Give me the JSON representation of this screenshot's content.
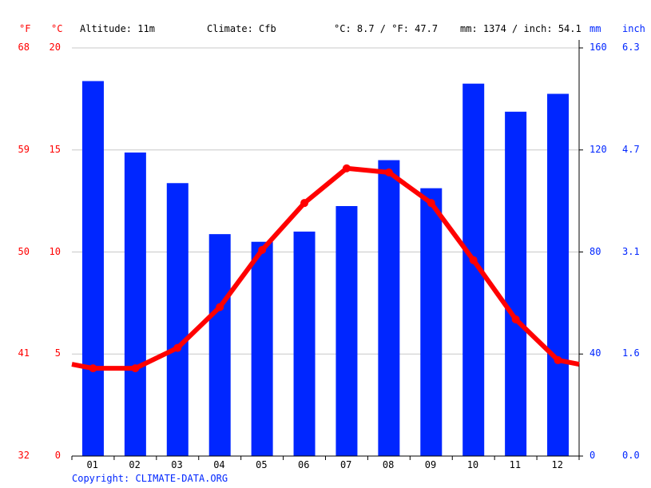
{
  "header": {
    "f_unit": "°F",
    "c_unit": "°C",
    "mm_unit": "mm",
    "inch_unit": "inch",
    "altitude": "Altitude: 11m",
    "climate": "Climate: Cfb",
    "temp_avg": "°C: 8.7 / °F: 47.7",
    "precip_total": "mm: 1374 / inch: 54.1"
  },
  "copyright": "Copyright: CLIMATE-DATA.ORG",
  "chart_data": {
    "type": "bar+line",
    "categories": [
      "01",
      "02",
      "03",
      "04",
      "05",
      "06",
      "07",
      "08",
      "09",
      "10",
      "11",
      "12"
    ],
    "series": [
      {
        "name": "mm",
        "type": "bar",
        "color": "#0026ff",
        "axis": "right",
        "values": [
          147,
          119,
          107,
          87,
          84,
          88,
          98,
          116,
          105,
          146,
          135,
          142
        ]
      },
      {
        "name": "°C",
        "type": "line",
        "color": "#ff0000",
        "axis": "left",
        "values": [
          4.3,
          4.3,
          5.3,
          7.3,
          10.1,
          12.4,
          14.1,
          13.9,
          12.4,
          9.6,
          6.7,
          4.7
        ]
      }
    ],
    "left_axis": {
      "unit": "°C",
      "range": [
        0,
        20
      ],
      "ticks": [
        "0",
        "5",
        "10",
        "15",
        "20"
      ]
    },
    "left_axis_f": {
      "unit": "°F",
      "ticks": [
        "32",
        "41",
        "50",
        "59",
        "68"
      ]
    },
    "right_axis": {
      "unit": "mm",
      "range": [
        0,
        160
      ],
      "ticks": [
        "0",
        "40",
        "80",
        "120",
        "160"
      ]
    },
    "right_axis_inch": {
      "unit": "inch",
      "ticks": [
        "0.0",
        "1.6",
        "3.1",
        "4.7",
        "6.3"
      ]
    },
    "grid": true
  }
}
